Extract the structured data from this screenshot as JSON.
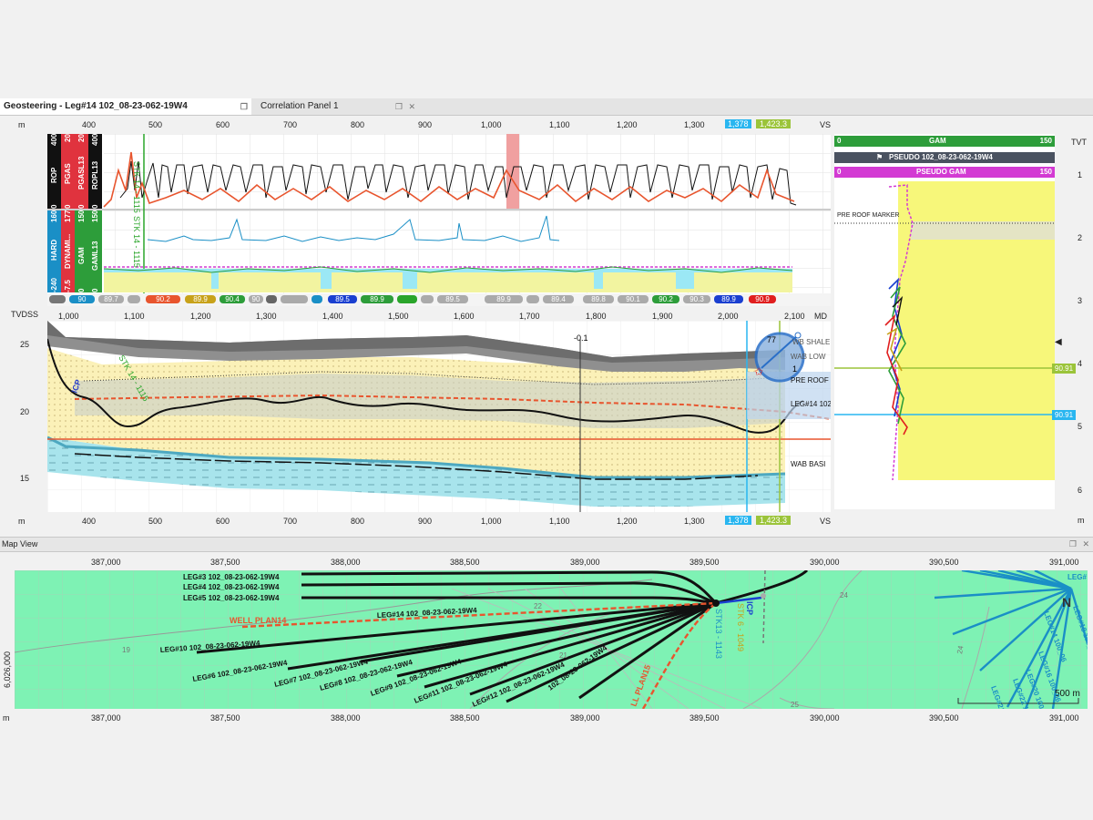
{
  "tabs": [
    {
      "label": "Geosteering - Leg#14 102_08-23-062-19W4",
      "active": true
    },
    {
      "label": "Correlation Panel 1",
      "active": false
    }
  ],
  "icons": {
    "tab_restore": "restore-window-icon",
    "tab_close": "close-icon",
    "map_restore": "restore-window-icon",
    "map_close": "close-icon",
    "north": "north-arrow-icon",
    "flag": "well-flag-icon"
  },
  "top_axis": {
    "unit": "m",
    "ticks": [
      "400",
      "500",
      "600",
      "700",
      "800",
      "900",
      "1,000",
      "1,100",
      "1,200",
      "1,300"
    ],
    "cursor_blue": "1,378",
    "cursor_green": "1,423.3",
    "right": "VS"
  },
  "bottom_axis": {
    "unit": "m",
    "ticks": [
      "400",
      "500",
      "600",
      "700",
      "800",
      "900",
      "1,000",
      "1,100",
      "1,200",
      "1,300"
    ],
    "cursor_blue": "1,378",
    "cursor_green": "1,423.3",
    "right": "VS"
  },
  "md_axis": {
    "ticks": [
      "1,000",
      "1,100",
      "1,200",
      "1,300",
      "1,400",
      "1,500",
      "1,600",
      "1,700",
      "1,800",
      "1,900",
      "2,000",
      "2,100"
    ],
    "unit": "MD"
  },
  "tvdss": {
    "label": "TVDSS",
    "ticks": [
      "25",
      "20",
      "15"
    ]
  },
  "tvt": {
    "label": "TVT",
    "ticks": [
      "1",
      "2",
      "3",
      "4",
      "5",
      "6"
    ],
    "unit": "m"
  },
  "track1": {
    "curves": [
      {
        "name": "ROP",
        "max": "400",
        "min": "0",
        "color": "#111111"
      },
      {
        "name": "PGAS",
        "max": "20",
        "min": "0",
        "color": "#e0333e"
      },
      {
        "name": "PGASL13",
        "max": "20",
        "min": "0",
        "color": "#e0333e"
      },
      {
        "name": "ROPL13",
        "max": "400",
        "min": "0",
        "color": "#111111"
      }
    ]
  },
  "track2": {
    "curves": [
      {
        "name": "HARD",
        "max": "160",
        "min": "-240",
        "color": "#1a8fc6"
      },
      {
        "name": "DYNAMI...",
        "max": "177",
        "min": "-7.5",
        "color": "#e0333e"
      },
      {
        "name": "GAM",
        "max": "150",
        "min": "0",
        "color": "#2d9d3a"
      },
      {
        "name": "GAML13",
        "max": "150",
        "min": "0",
        "color": "#2d9d3a"
      }
    ]
  },
  "stk_label": "STK 14 - 1115",
  "stk_label2": "STK 14 - 1115",
  "icp": "ICP",
  "dip_chips": [
    "90",
    "89.7",
    "90.2",
    "89.9",
    "90.4",
    "90",
    "89.5",
    "89.9",
    "89.5",
    "89.9",
    "89.4",
    "89.8",
    "90.1",
    "90.2",
    "90.3",
    "89.9",
    "90.9"
  ],
  "section": {
    "dip_label": "-0.1",
    "widget_top": "77",
    "widget_bottom": "1",
    "markers": [
      "WB SHALE",
      "WAB LOW",
      "PRE ROOF M",
      "LEG#14 102_",
      "WAB BASI"
    ]
  },
  "correlation": {
    "gam_header": {
      "label": "GAM",
      "min": "0",
      "max": "150"
    },
    "pseudo_well": "PSEUDO 102_08-23-062-19W4",
    "pseudo_header": {
      "label": "PSEUDO GAM",
      "min": "0",
      "max": "150"
    },
    "marker": "PRE ROOF MARKER",
    "value_green": "90.91",
    "value_blue": "90.91"
  },
  "map": {
    "title": "Map View",
    "x_ticks": [
      "387,000",
      "387,500",
      "388,000",
      "388,500",
      "389,000",
      "389,500",
      "390,000",
      "390,500",
      "391,000"
    ],
    "y_tick": "6,026,000",
    "unit": "m",
    "scale": "500 m",
    "contours": [
      "19",
      "22",
      "21",
      "24",
      "25",
      "24"
    ],
    "legs": [
      "LEG#3 102_08-23-062-19W4",
      "LEG#4 102_08-23-062-19W4",
      "LEG#5 102_08-23-062-19W4",
      "LEG#14 102_08-23-062-19W4",
      "LEG#10 102_08-23-062-19W4",
      "LEG#6 102_08-23-062-19W4",
      "LEG#7 102_08-23-062-19W4",
      "LEG#8 102_08-23-062-19W4",
      "LEG#9 102_08-23-062-19W4",
      "LEG#11 102_08-23-062-19W4",
      "LEG#12 102_08-23-062-19W4",
      "102_08-23-062-19W4"
    ],
    "plans": [
      "WELL PLAN14",
      "LL PLAN15"
    ],
    "stk": [
      "STK13 - 1143",
      "STK 6 - 1049"
    ],
    "icp": "ICP",
    "right_legs": [
      "LEG#",
      "LEG#14 100_06",
      "LEG#16 100_06",
      "LEG#18 100_06",
      "LEG#20 100",
      "LEG#22 100",
      "LEG#21 100"
    ]
  }
}
